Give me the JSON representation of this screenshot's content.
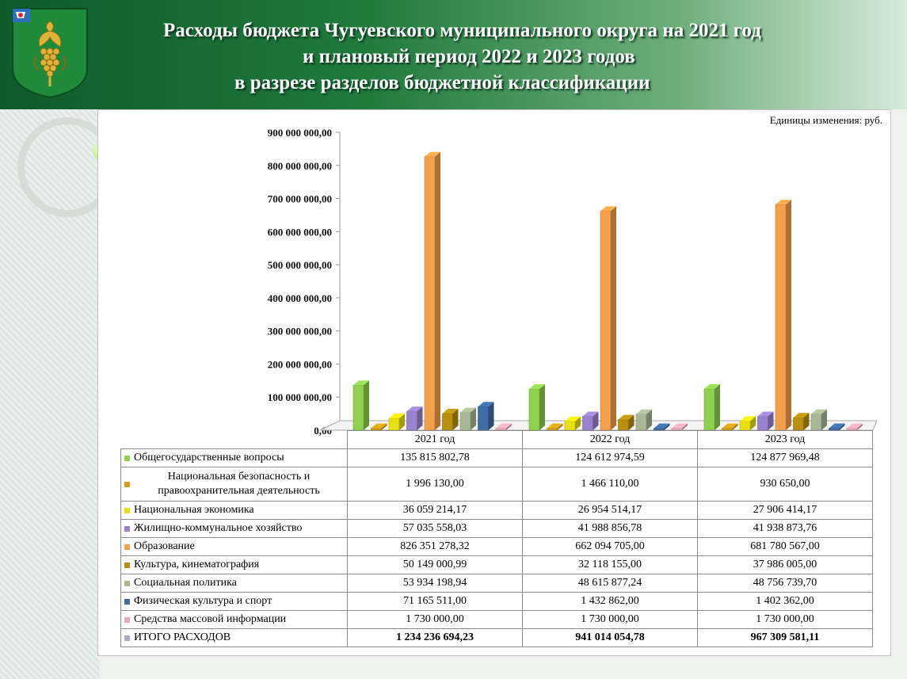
{
  "header": {
    "title_lines": [
      "Расходы бюджета Чугуевского муниципального округа на 2021 год",
      "и плановый период 2022 и 2023 годов",
      "в разрезе разделов бюджетной классификации"
    ]
  },
  "unit_label": "Единицы изменения: руб.",
  "chart_data": {
    "type": "bar",
    "categories": [
      "2021 год",
      "2022 год",
      "2023 год"
    ],
    "ylim": [
      0,
      900000000
    ],
    "yticks": [
      {
        "value": 0,
        "label": "0,00"
      },
      {
        "value": 100000000,
        "label": "100 000 000,00"
      },
      {
        "value": 200000000,
        "label": "200 000 000,00"
      },
      {
        "value": 300000000,
        "label": "300 000 000,00"
      },
      {
        "value": 400000000,
        "label": "400 000 000,00"
      },
      {
        "value": 500000000,
        "label": "500 000 000,00"
      },
      {
        "value": 600000000,
        "label": "600 000 000,00"
      },
      {
        "value": 700000000,
        "label": "700 000 000,00"
      },
      {
        "value": 800000000,
        "label": "800 000 000,00"
      },
      {
        "value": 900000000,
        "label": "900 000 000,00"
      }
    ],
    "series": [
      {
        "name": "Общегосударственные вопросы",
        "color": "#8fd14f",
        "values": [
          135815802.78,
          124612974.59,
          124877969.48
        ],
        "labels": [
          "135 815 802,78",
          "124 612 974,59",
          "124 877 969,48"
        ]
      },
      {
        "name": "Национальная безопасность и правоохранительная деятельность",
        "color": "#d4a017",
        "values": [
          1996130.0,
          1466110.0,
          930650.0
        ],
        "labels": [
          "1 996 130,00",
          "1 466 110,00",
          "930 650,00"
        ]
      },
      {
        "name": "Национальная экономика",
        "color": "#e8e010",
        "values": [
          36059214.17,
          26954514.17,
          27906414.17
        ],
        "labels": [
          "36 059 214,17",
          "26 954 514,17",
          "27 906 414,17"
        ]
      },
      {
        "name": "Жилищно-коммунальное хозяйство",
        "color": "#9b82d0",
        "values": [
          57035558.03,
          41988856.78,
          41938873.76
        ],
        "labels": [
          "57 035 558,03",
          "41 988 856,78",
          "41 938 873,76"
        ]
      },
      {
        "name": "Образование",
        "color": "#f5a04a",
        "values": [
          826351278.32,
          662094705.0,
          681780567.0
        ],
        "labels": [
          "826 351 278,32",
          "662 094 705,00",
          "681 780 567,00"
        ]
      },
      {
        "name": "Культура,  кинематография",
        "color": "#b8900e",
        "values": [
          50149000.99,
          32118155.0,
          37986005.0
        ],
        "labels": [
          "50 149 000,99",
          "32 118 155,00",
          "37 986 005,00"
        ]
      },
      {
        "name": "Социальная политика",
        "color": "#a8b896",
        "values": [
          53934198.94,
          48615877.24,
          48756739.7
        ],
        "labels": [
          "53 934 198,94",
          "48 615 877,24",
          "48 756 739,70"
        ]
      },
      {
        "name": "Физическая культура  и спорт",
        "color": "#3f6ea6",
        "values": [
          71165511.0,
          1432862.0,
          1402362.0
        ],
        "labels": [
          "71 165 511,00",
          "1 432 862,00",
          "1 402 362,00"
        ]
      },
      {
        "name": "Средства массовой информации",
        "color": "#e6a9b8",
        "values": [
          1730000.0,
          1730000.0,
          1730000.0
        ],
        "labels": [
          "1 730 000,00",
          "1 730 000,00",
          "1 730 000,00"
        ]
      }
    ],
    "total": {
      "name": "ИТОГО РАСХОДОВ",
      "color": "#b0a8c8",
      "values": [
        1234236694.23,
        941014054.78,
        967309581.11
      ],
      "labels": [
        "1 234 236 694,23",
        "941 014 054,78",
        "967 309 581,11"
      ]
    }
  }
}
